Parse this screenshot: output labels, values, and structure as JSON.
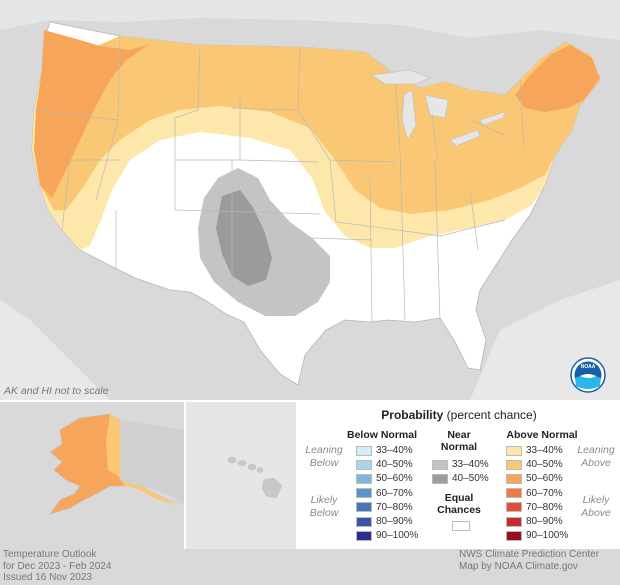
{
  "scale_note": "AK and HI not to scale",
  "legend": {
    "title_bold": "Probability",
    "title_rest": "(percent chance)",
    "below_normal": "Below Normal",
    "near_normal_line1": "Near",
    "near_normal_line2": "Normal",
    "above_normal": "Above Normal",
    "leaning_below": "Leaning Below",
    "likely_below": "Likely Below",
    "leaning_above": "Leaning Above",
    "likely_above": "Likely Above",
    "equal_line1": "Equal",
    "equal_line2": "Chances",
    "below_items": [
      {
        "label": "33–40%",
        "color": "#d6ecf7"
      },
      {
        "label": "40–50%",
        "color": "#aad4ec"
      },
      {
        "label": "50–60%",
        "color": "#7fb6df"
      },
      {
        "label": "60–70%",
        "color": "#5b94cd"
      },
      {
        "label": "70–80%",
        "color": "#4a74bb"
      },
      {
        "label": "80–90%",
        "color": "#3c53a7"
      },
      {
        "label": "90–100%",
        "color": "#2c2e8f"
      }
    ],
    "near_items": [
      {
        "label": "33–40%",
        "color": "#c4c4c4"
      },
      {
        "label": "40–50%",
        "color": "#9b9b9b"
      }
    ],
    "above_items": [
      {
        "label": "33–40%",
        "color": "#fde7aa"
      },
      {
        "label": "40–50%",
        "color": "#fac875"
      },
      {
        "label": "50–60%",
        "color": "#f6a55a"
      },
      {
        "label": "60–70%",
        "color": "#ef7a44"
      },
      {
        "label": "70–80%",
        "color": "#e04e33"
      },
      {
        "label": "80–90%",
        "color": "#c92a2a"
      },
      {
        "label": "90–100%",
        "color": "#9c0a1e"
      }
    ],
    "equal_color": "#ffffff"
  },
  "footer_left": {
    "line1": "Temperature Outlook",
    "line2": "for Dec 2023 - Feb 2024",
    "line3": "Issued 16 Nov 2023"
  },
  "footer_right": {
    "line1": "NWS Climate Prediction Center",
    "line2": "Map by NOAA Climate.gov"
  },
  "logo_text": "NOAA",
  "colors": {
    "background_land": "#d9d9d9",
    "water": "#ebebeb",
    "equal_chances": "#ffffff",
    "leaning_above": "#fde7aa",
    "above_40_50": "#fac875",
    "above_50_60": "#f6a55a",
    "near_33_40": "#c4c4c4",
    "near_40_50": "#9b9b9b"
  }
}
